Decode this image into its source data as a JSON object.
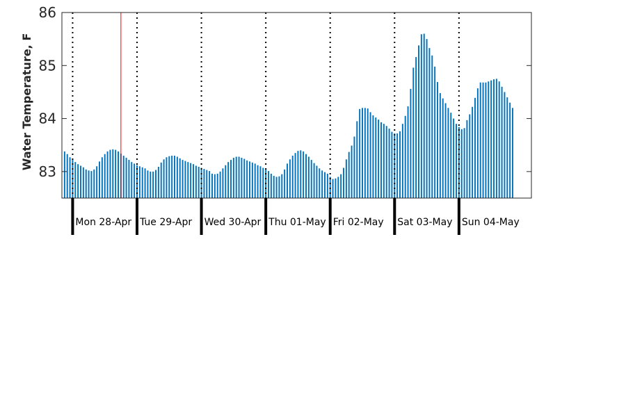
{
  "chart_data": {
    "type": "bar",
    "title": "",
    "xlabel": "",
    "ylabel": "Water Temperature, F",
    "ylim": [
      82.5,
      86
    ],
    "yticks": [
      83,
      84,
      85,
      86
    ],
    "x_unit": "hour",
    "x_start": "2025-04-27 20:00",
    "x_end": "2025-05-05 03:00",
    "day_boundaries": [
      "2025-04-28 00:00",
      "2025-04-29 00:00",
      "2025-04-30 00:00",
      "2025-05-01 00:00",
      "2025-05-02 00:00",
      "2025-05-03 00:00",
      "2025-05-04 00:00"
    ],
    "day_labels": [
      "Mon 28-Apr",
      "Tue 29-Apr",
      "Wed 30-Apr",
      "Thu 01-May",
      "Fri 02-May",
      "Sat 03-May",
      "Sun 04-May"
    ],
    "current_time": "2025-04-28 18:00",
    "values": [
      83.38,
      83.33,
      83.27,
      83.22,
      83.18,
      83.14,
      83.11,
      83.08,
      83.04,
      83.02,
      83.01,
      83.04,
      83.1,
      83.19,
      83.27,
      83.33,
      83.38,
      83.41,
      83.42,
      83.41,
      83.38,
      83.34,
      83.3,
      83.26,
      83.22,
      83.18,
      83.15,
      83.12,
      83.1,
      83.08,
      83.06,
      83.02,
      83.0,
      83.0,
      83.03,
      83.09,
      83.17,
      83.23,
      83.27,
      83.29,
      83.3,
      83.3,
      83.28,
      83.25,
      83.22,
      83.2,
      83.18,
      83.16,
      83.14,
      83.11,
      83.09,
      83.07,
      83.05,
      83.03,
      83.01,
      82.96,
      82.95,
      82.96,
      83.0,
      83.06,
      83.12,
      83.18,
      83.22,
      83.26,
      83.28,
      83.28,
      83.26,
      83.24,
      83.21,
      83.19,
      83.17,
      83.15,
      83.12,
      83.1,
      83.07,
      83.04,
      83.01,
      82.96,
      82.92,
      82.9,
      82.91,
      82.95,
      83.04,
      83.15,
      83.23,
      83.3,
      83.35,
      83.39,
      83.4,
      83.38,
      83.33,
      83.28,
      83.22,
      83.16,
      83.11,
      83.06,
      83.02,
      82.99,
      82.96,
      82.9,
      82.86,
      82.87,
      82.9,
      82.95,
      83.07,
      83.23,
      83.37,
      83.49,
      83.66,
      83.95,
      84.18,
      84.2,
      84.2,
      84.19,
      84.12,
      84.06,
      84.02,
      83.98,
      83.93,
      83.9,
      83.86,
      83.81,
      83.75,
      83.72,
      83.72,
      83.76,
      83.9,
      84.05,
      84.23,
      84.56,
      84.96,
      85.16,
      85.38,
      85.59,
      85.6,
      85.5,
      85.33,
      85.19,
      84.98,
      84.69,
      84.48,
      84.38,
      84.29,
      84.2,
      84.11,
      84.0,
      83.9,
      83.84,
      83.8,
      83.82,
      83.97,
      84.08,
      84.22,
      84.39,
      84.57,
      84.68,
      84.68,
      84.68,
      84.7,
      84.72,
      84.74,
      84.75,
      84.7,
      84.6,
      84.5,
      84.4,
      84.3,
      84.2
    ],
    "bar_color": "#0072bd",
    "marker_color": "#ff0000",
    "grid": false,
    "legend": "none"
  }
}
